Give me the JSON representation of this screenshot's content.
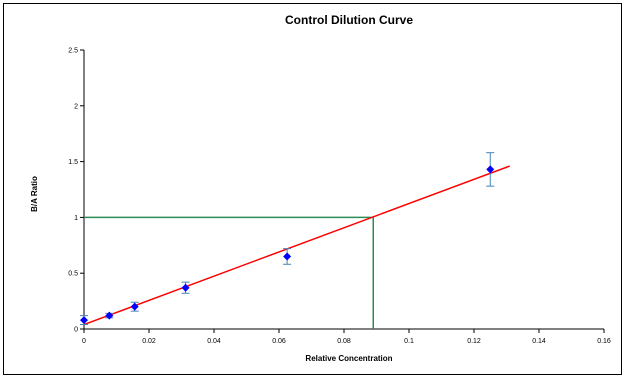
{
  "chart_data": {
    "type": "scatter",
    "title": "Control Dilution Curve",
    "xlabel": "Relative Concentration",
    "ylabel": "B/A Ratio",
    "xlim": [
      0,
      0.16
    ],
    "ylim": [
      0,
      2.5
    ],
    "x_ticks": [
      "0",
      "0.02",
      "0.04",
      "0.06",
      "0.08",
      "0.1",
      "0.12",
      "0.14",
      "0.16"
    ],
    "y_ticks": [
      "0",
      "0.5",
      "1",
      "1.5",
      "2",
      "2.5"
    ],
    "grid": false,
    "legend": "none",
    "series": [
      {
        "type": "scatter",
        "color": "#0000ff",
        "marker": "diamond",
        "points": [
          {
            "x": 0.0,
            "y": 0.08,
            "err": 0.04
          },
          {
            "x": 0.0078,
            "y": 0.12,
            "err": 0.02
          },
          {
            "x": 0.0156,
            "y": 0.2,
            "err": 0.04
          },
          {
            "x": 0.03125,
            "y": 0.37,
            "err": 0.05
          },
          {
            "x": 0.0625,
            "y": 0.65,
            "err": 0.07
          },
          {
            "x": 0.125,
            "y": 1.43,
            "err": 0.15
          }
        ]
      }
    ],
    "fit_line": {
      "color": "#ff0000",
      "x": [
        0.0,
        0.131
      ],
      "y": [
        0.04,
        1.46
      ]
    },
    "reference_lines": {
      "color": "#2e8b57",
      "x": 0.089,
      "y": 1.0
    }
  }
}
